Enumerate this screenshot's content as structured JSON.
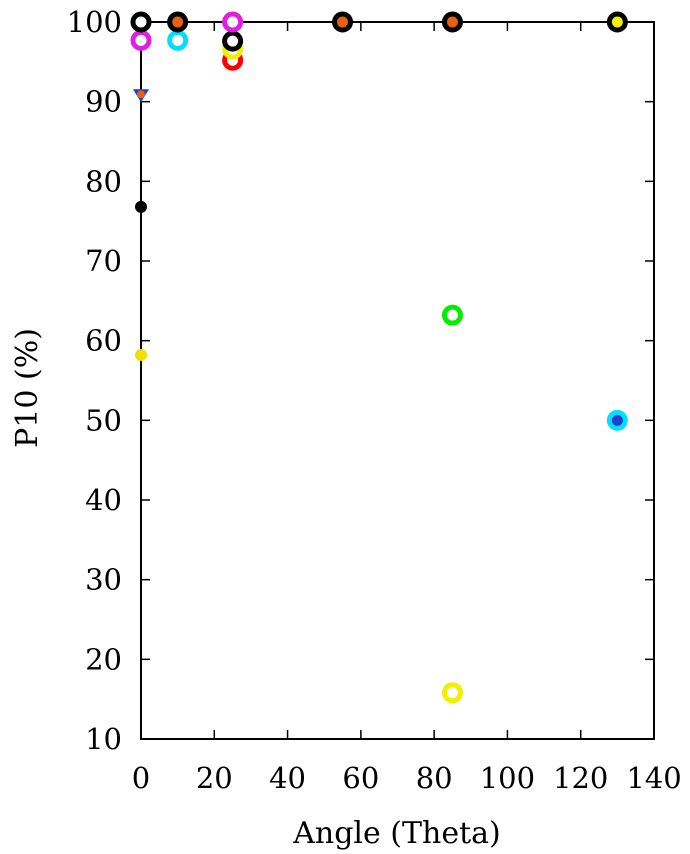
{
  "chart_data": {
    "type": "scatter",
    "xlabel": "Angle (Theta)",
    "ylabel": "P10 (%)",
    "xlim": [
      0,
      140
    ],
    "ylim": [
      10,
      100
    ],
    "xticks": [
      0,
      20,
      40,
      60,
      80,
      100,
      120,
      140
    ],
    "yticks": [
      10,
      20,
      30,
      40,
      50,
      60,
      70,
      80,
      90,
      100
    ],
    "grid": false,
    "legend": "none",
    "points": [
      {
        "x": 0,
        "y": 58.2,
        "marker": "dot",
        "color": "#f0e000",
        "inner": "#ffffff"
      },
      {
        "x": 0,
        "y": 76.8,
        "marker": "dot",
        "color": "#000000",
        "inner": "#000000"
      },
      {
        "x": 0,
        "y": 90.8,
        "marker": "triangle",
        "color": "#1f3fd0",
        "inner": "#e86010"
      },
      {
        "x": 0,
        "y": 97.7,
        "marker": "ring",
        "color": "#e020e0",
        "inner": "#ffffff"
      },
      {
        "x": 0,
        "y": 100,
        "marker": "ring",
        "color": "#000000",
        "inner": "#ffffff"
      },
      {
        "x": 10,
        "y": 97.7,
        "marker": "ring",
        "color": "#00dfff",
        "inner": "#ffffff"
      },
      {
        "x": 10,
        "y": 100,
        "marker": "ring",
        "color": "#000000",
        "inner": "#e86010"
      },
      {
        "x": 25,
        "y": 95.2,
        "marker": "ring",
        "color": "#ff0000",
        "inner": "#ffffff"
      },
      {
        "x": 25,
        "y": 96.6,
        "marker": "ring",
        "color": "#f0f000",
        "inner": "#ffffff"
      },
      {
        "x": 25,
        "y": 97.6,
        "marker": "ring",
        "color": "#000000",
        "inner": "#ffffff"
      },
      {
        "x": 25,
        "y": 100,
        "marker": "ring",
        "color": "#e020e0",
        "inner": "#ffffff"
      },
      {
        "x": 55,
        "y": 100,
        "marker": "ring",
        "color": "#000000",
        "inner": "#e86010"
      },
      {
        "x": 85,
        "y": 63.2,
        "marker": "ring",
        "color": "#00ee00",
        "inner": "#ffffff"
      },
      {
        "x": 85,
        "y": 15.8,
        "marker": "ring",
        "color": "#f0f000",
        "inner": "#ffffff"
      },
      {
        "x": 85,
        "y": 100,
        "marker": "ring",
        "color": "#000000",
        "inner": "#e86010"
      },
      {
        "x": 130,
        "y": 50,
        "marker": "ring",
        "color": "#00dfff",
        "inner": "#1f3fd0"
      },
      {
        "x": 130,
        "y": 100,
        "marker": "ring",
        "color": "#000000",
        "inner": "#f0f000"
      }
    ]
  }
}
